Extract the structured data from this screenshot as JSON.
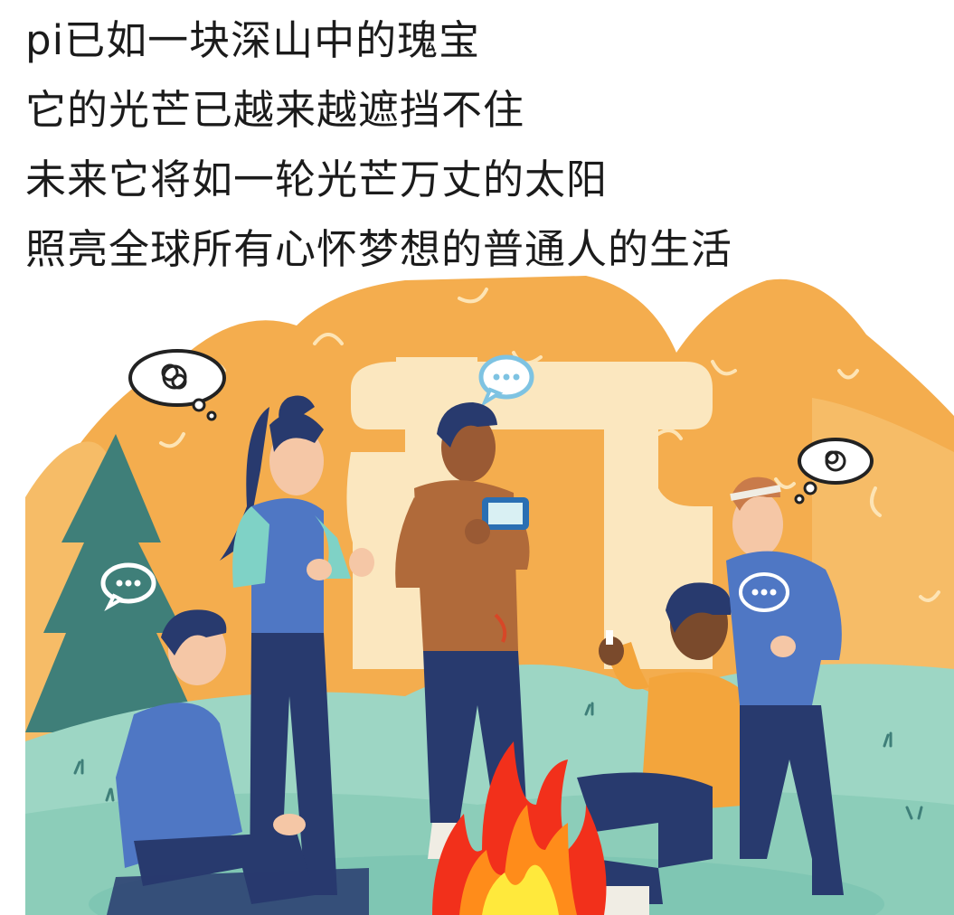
{
  "caption": {
    "lines": [
      "pi已如一块深山中的瑰宝",
      "它的光芒已越来越遮挡不住",
      "未来它将如一轮光芒万丈的太阳",
      "照亮全球所有心怀梦想的普通人的生活"
    ]
  },
  "illustration": {
    "scene": "campfire-gathering",
    "icons": [
      "pi-symbol-icon",
      "chat-bubble-icon",
      "thought-bubble-icon",
      "campfire-icon",
      "phone-icon"
    ],
    "colors": {
      "sky": "#f4ad4e",
      "pi_symbol": "#fbe7bf",
      "hill": "#9dd6c4",
      "hill_dark": "#7fc6b3",
      "tree": "#3f7f79",
      "navy": "#283a6e",
      "blue_sweater": "#4f77c4",
      "teal_sleeve": "#7fd2c6",
      "brown_sweater": "#b06a3a",
      "yellow_sweater": "#f3a53c",
      "fire_red": "#f2301b",
      "fire_yellow": "#ffe93c"
    }
  }
}
